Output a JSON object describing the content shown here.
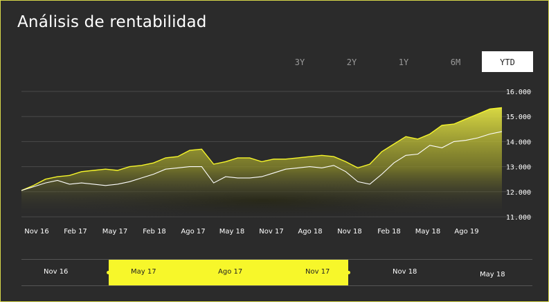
{
  "title": "Análisis de rentabilidad",
  "range_buttons": [
    {
      "label": "3Y",
      "active": false
    },
    {
      "label": "2Y",
      "active": false
    },
    {
      "label": "1Y",
      "active": false
    },
    {
      "label": "6M",
      "active": false
    },
    {
      "label": "YTD",
      "active": true
    }
  ],
  "colors": {
    "accent": "#f7f72a",
    "background": "#2b2b2b",
    "area_top": "#d4d43a",
    "line_white": "#ffffff"
  },
  "chart_data": {
    "type": "area",
    "x_tick_labels": [
      "Nov 16",
      "Feb 17",
      "May 17",
      "Feb 18",
      "Ago 17",
      "May 18",
      "Nov 17",
      "Ago 18",
      "Nov 18",
      "Feb 18",
      "May 18",
      "Ago 19"
    ],
    "y_tick_labels": [
      "16.000",
      "15.000",
      "14.000",
      "13.000",
      "12.000",
      "11.000"
    ],
    "ylim": [
      11000,
      16000
    ],
    "grid": true,
    "series": [
      {
        "values": [
          12050,
          12250,
          12500,
          12600,
          12650,
          12800,
          12850,
          12900,
          12850,
          13000,
          13050,
          13150,
          13350,
          13400,
          13650,
          13700,
          13100,
          13200,
          13350,
          13350,
          13200,
          13300,
          13300,
          13350,
          13400,
          13450,
          13400,
          13200,
          12950,
          13100,
          13600,
          13900,
          14200,
          14100,
          14300,
          14650,
          14700,
          14900,
          15100,
          15300,
          15350
        ]
      },
      {
        "values": [
          12050,
          12200,
          12350,
          12450,
          12300,
          12350,
          12300,
          12250,
          12300,
          12400,
          12550,
          12700,
          12900,
          12950,
          13000,
          13000,
          12350,
          12600,
          12550,
          12550,
          12600,
          12750,
          12900,
          12950,
          13000,
          12950,
          13050,
          12800,
          12400,
          12300,
          12700,
          13150,
          13450,
          13500,
          13850,
          13750,
          14000,
          14050,
          14150,
          14300,
          14400
        ]
      }
    ]
  },
  "navigator": {
    "labels": [
      "Nov 16",
      "May 17",
      "Ago 17",
      "Nov 17",
      "Nov 18",
      "May 18"
    ]
  }
}
